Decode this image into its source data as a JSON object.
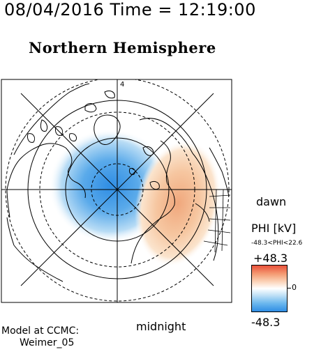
{
  "header": {
    "timestamp": "08/04/2016 Time = 12:19:00"
  },
  "map": {
    "title": "Northern Hemisphere",
    "meridian_label": "4",
    "labels": {
      "dawn": "dawn",
      "midnight": "midnight"
    }
  },
  "legend": {
    "title": "PHI [kV]",
    "range": "-48.3<PHI<22.6",
    "max_label": "+48.3",
    "zero_label": "0",
    "min_label": "-48.3",
    "colors": {
      "positive": "#e8503a",
      "neutral": "#ffffff",
      "negative": "#2f8de4"
    }
  },
  "credit": {
    "line1": "Model at CCMC:",
    "line2": "Weimer_05"
  }
}
